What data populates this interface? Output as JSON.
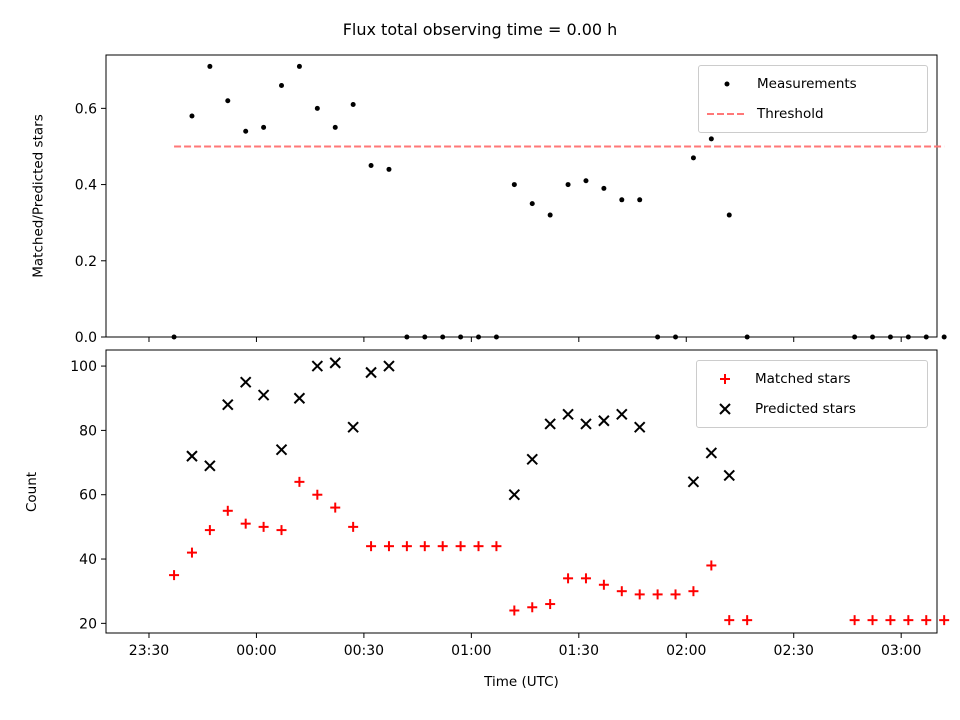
{
  "title": "Flux total observing time = 0.00 h",
  "chart_data": [
    {
      "type": "scatter",
      "ylabel": "Matched/Predicted stars",
      "ylim": [
        0,
        0.74
      ],
      "yticks": [
        "0.0",
        "0.2",
        "0.4",
        "0.6"
      ],
      "legend_position": "top-right",
      "series": [
        {
          "name": "Measurements",
          "color": "#000000",
          "marker": "dot",
          "x": [
            "23:37",
            "23:42",
            "23:47",
            "23:52",
            "23:57",
            "00:02",
            "00:07",
            "00:12",
            "00:17",
            "00:22",
            "00:27",
            "00:32",
            "00:37",
            "00:42",
            "00:47",
            "00:52",
            "00:57",
            "01:02",
            "01:07",
            "01:12",
            "01:17",
            "01:22",
            "01:27",
            "01:32",
            "01:37",
            "01:42",
            "01:47",
            "01:52",
            "01:57",
            "02:02",
            "02:07",
            "02:12",
            "02:17",
            "02:47",
            "02:52",
            "02:57",
            "03:02",
            "03:07",
            "03:12"
          ],
          "y": [
            0.0,
            0.58,
            0.71,
            0.62,
            0.54,
            0.55,
            0.66,
            0.71,
            0.6,
            0.55,
            0.61,
            0.45,
            0.44,
            0.0,
            0.0,
            0.0,
            0.0,
            0.0,
            0.0,
            0.4,
            0.35,
            0.32,
            0.4,
            0.41,
            0.39,
            0.36,
            0.36,
            0.0,
            0.0,
            0.47,
            0.52,
            0.32,
            0.0,
            0.0,
            0.0,
            0.0,
            0.0,
            0.0,
            0.0
          ]
        },
        {
          "name": "Threshold",
          "color": "#ff7777",
          "style": "dashed",
          "x": [
            "23:37",
            "03:12"
          ],
          "y": [
            0.5,
            0.5
          ]
        }
      ]
    },
    {
      "type": "scatter",
      "ylabel": "Count",
      "xlabel": "Time (UTC)",
      "ylim": [
        17,
        105
      ],
      "yticks": [
        "20",
        "40",
        "60",
        "80",
        "100"
      ],
      "xticks": [
        "23:30",
        "00:00",
        "00:30",
        "01:00",
        "01:30",
        "02:00",
        "02:30",
        "03:00"
      ],
      "legend_position": "top-right",
      "series": [
        {
          "name": "Matched stars",
          "color": "#ff0000",
          "marker": "plus",
          "x": [
            "23:37",
            "23:42",
            "23:47",
            "23:52",
            "23:57",
            "00:02",
            "00:07",
            "00:12",
            "00:17",
            "00:22",
            "00:27",
            "00:32",
            "00:37",
            "00:42",
            "00:47",
            "00:52",
            "00:57",
            "01:02",
            "01:07",
            "01:12",
            "01:17",
            "01:22",
            "01:27",
            "01:32",
            "01:37",
            "01:42",
            "01:47",
            "01:52",
            "01:57",
            "02:02",
            "02:07",
            "02:12",
            "02:17",
            "02:47",
            "02:52",
            "02:57",
            "03:02",
            "03:07",
            "03:12"
          ],
          "y": [
            35,
            42,
            49,
            55,
            51,
            50,
            49,
            64,
            60,
            56,
            50,
            44,
            44,
            44,
            44,
            44,
            44,
            44,
            44,
            24,
            25,
            26,
            34,
            34,
            32,
            30,
            29,
            29,
            29,
            30,
            38,
            21,
            21,
            21,
            21,
            21,
            21,
            21,
            21
          ]
        },
        {
          "name": "Predicted stars",
          "color": "#000000",
          "marker": "x",
          "x": [
            "23:42",
            "23:47",
            "23:52",
            "23:57",
            "00:02",
            "00:07",
            "00:12",
            "00:17",
            "00:22",
            "00:27",
            "00:32",
            "00:37",
            "01:12",
            "01:17",
            "01:22",
            "01:27",
            "01:32",
            "01:37",
            "01:42",
            "01:47",
            "02:02",
            "02:07",
            "02:12"
          ],
          "y": [
            72,
            69,
            88,
            95,
            91,
            74,
            90,
            100,
            101,
            81,
            98,
            100,
            60,
            71,
            82,
            85,
            82,
            83,
            85,
            81,
            64,
            73,
            66
          ]
        }
      ]
    }
  ]
}
